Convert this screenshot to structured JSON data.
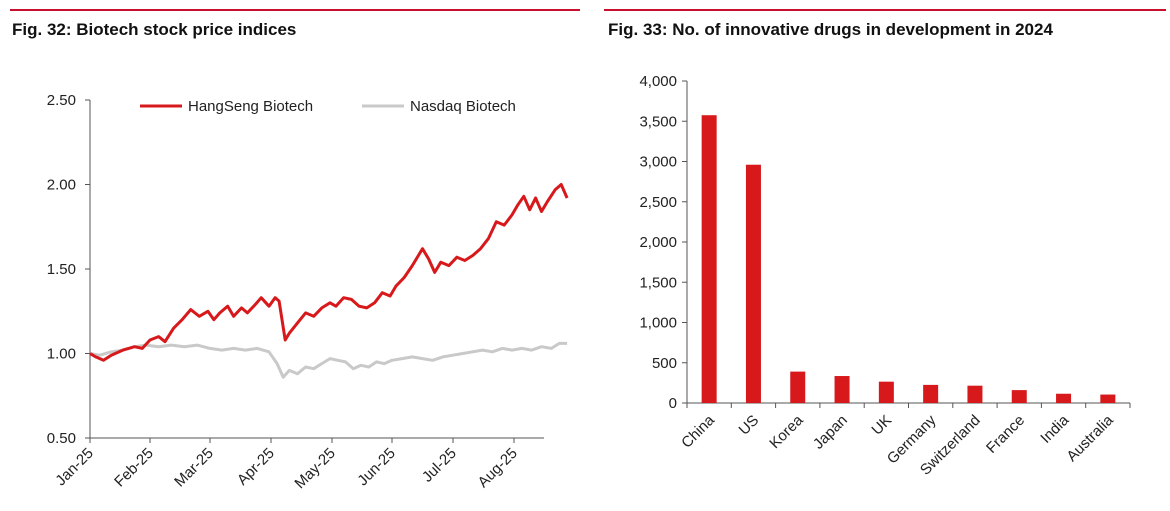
{
  "figures": [
    {
      "title": "Fig. 32: Biotech stock price indices"
    },
    {
      "title": "Fig. 33: No. of innovative drugs in development in 2024"
    }
  ],
  "colors": {
    "red": "#d7191c",
    "grey": "#c9c9c9",
    "rule": "#c8102e"
  },
  "chart_data": [
    {
      "type": "line",
      "title": "Fig. 32: Biotech stock price indices",
      "xlabel": "",
      "ylabel": "",
      "x_ticks": [
        "Jan-25",
        "Feb-25",
        "Mar-25",
        "Apr-25",
        "May-25",
        "Jun-25",
        "Jul-25",
        "Aug-25"
      ],
      "y_ticks": [
        "0.50",
        "1.00",
        "1.50",
        "2.00",
        "2.50"
      ],
      "ylim": [
        0.5,
        2.5
      ],
      "legend_position": "top",
      "series": [
        {
          "name": "HangSeng Biotech",
          "color": "#d7191c",
          "points": [
            [
              "2025-01-01",
              1.0
            ],
            [
              "2025-01-04",
              0.98
            ],
            [
              "2025-01-08",
              0.96
            ],
            [
              "2025-01-12",
              0.99
            ],
            [
              "2025-01-18",
              1.02
            ],
            [
              "2025-01-24",
              1.04
            ],
            [
              "2025-01-28",
              1.03
            ],
            [
              "2025-02-01",
              1.08
            ],
            [
              "2025-02-05",
              1.1
            ],
            [
              "2025-02-08",
              1.07
            ],
            [
              "2025-02-12",
              1.15
            ],
            [
              "2025-02-16",
              1.2
            ],
            [
              "2025-02-20",
              1.26
            ],
            [
              "2025-02-24",
              1.22
            ],
            [
              "2025-02-28",
              1.25
            ],
            [
              "2025-03-03",
              1.2
            ],
            [
              "2025-03-06",
              1.24
            ],
            [
              "2025-03-10",
              1.28
            ],
            [
              "2025-03-13",
              1.22
            ],
            [
              "2025-03-17",
              1.27
            ],
            [
              "2025-03-20",
              1.24
            ],
            [
              "2025-03-24",
              1.29
            ],
            [
              "2025-03-27",
              1.33
            ],
            [
              "2025-03-31",
              1.28
            ],
            [
              "2025-04-03",
              1.33
            ],
            [
              "2025-04-05",
              1.31
            ],
            [
              "2025-04-08",
              1.08
            ],
            [
              "2025-04-10",
              1.12
            ],
            [
              "2025-04-14",
              1.18
            ],
            [
              "2025-04-18",
              1.24
            ],
            [
              "2025-04-22",
              1.22
            ],
            [
              "2025-04-26",
              1.27
            ],
            [
              "2025-04-30",
              1.3
            ],
            [
              "2025-05-03",
              1.28
            ],
            [
              "2025-05-07",
              1.33
            ],
            [
              "2025-05-11",
              1.32
            ],
            [
              "2025-05-15",
              1.28
            ],
            [
              "2025-05-19",
              1.27
            ],
            [
              "2025-05-23",
              1.3
            ],
            [
              "2025-05-27",
              1.36
            ],
            [
              "2025-05-31",
              1.34
            ],
            [
              "2025-06-03",
              1.4
            ],
            [
              "2025-06-07",
              1.45
            ],
            [
              "2025-06-11",
              1.52
            ],
            [
              "2025-06-14",
              1.58
            ],
            [
              "2025-06-16",
              1.62
            ],
            [
              "2025-06-19",
              1.56
            ],
            [
              "2025-06-22",
              1.48
            ],
            [
              "2025-06-25",
              1.54
            ],
            [
              "2025-06-29",
              1.52
            ],
            [
              "2025-07-03",
              1.57
            ],
            [
              "2025-07-07",
              1.55
            ],
            [
              "2025-07-11",
              1.58
            ],
            [
              "2025-07-15",
              1.62
            ],
            [
              "2025-07-19",
              1.68
            ],
            [
              "2025-07-23",
              1.78
            ],
            [
              "2025-07-27",
              1.76
            ],
            [
              "2025-07-31",
              1.82
            ],
            [
              "2025-08-03",
              1.88
            ],
            [
              "2025-08-06",
              1.93
            ],
            [
              "2025-08-09",
              1.85
            ],
            [
              "2025-08-12",
              1.92
            ],
            [
              "2025-08-15",
              1.84
            ],
            [
              "2025-08-18",
              1.9
            ],
            [
              "2025-08-22",
              1.97
            ],
            [
              "2025-08-25",
              2.0
            ],
            [
              "2025-08-28",
              1.92
            ]
          ]
        },
        {
          "name": "Nasdaq Biotech",
          "color": "#c9c9c9",
          "points": [
            [
              "2025-01-01",
              1.0
            ],
            [
              "2025-01-06",
              0.99
            ],
            [
              "2025-01-12",
              1.01
            ],
            [
              "2025-01-18",
              1.02
            ],
            [
              "2025-01-24",
              1.04
            ],
            [
              "2025-01-30",
              1.05
            ],
            [
              "2025-02-05",
              1.04
            ],
            [
              "2025-02-11",
              1.05
            ],
            [
              "2025-02-17",
              1.04
            ],
            [
              "2025-02-23",
              1.05
            ],
            [
              "2025-03-01",
              1.03
            ],
            [
              "2025-03-07",
              1.02
            ],
            [
              "2025-03-13",
              1.03
            ],
            [
              "2025-03-19",
              1.02
            ],
            [
              "2025-03-25",
              1.03
            ],
            [
              "2025-03-31",
              1.01
            ],
            [
              "2025-04-04",
              0.94
            ],
            [
              "2025-04-07",
              0.86
            ],
            [
              "2025-04-10",
              0.9
            ],
            [
              "2025-04-14",
              0.88
            ],
            [
              "2025-04-18",
              0.92
            ],
            [
              "2025-04-22",
              0.91
            ],
            [
              "2025-04-26",
              0.94
            ],
            [
              "2025-04-30",
              0.97
            ],
            [
              "2025-05-04",
              0.96
            ],
            [
              "2025-05-08",
              0.95
            ],
            [
              "2025-05-12",
              0.91
            ],
            [
              "2025-05-16",
              0.93
            ],
            [
              "2025-05-20",
              0.92
            ],
            [
              "2025-05-24",
              0.95
            ],
            [
              "2025-05-28",
              0.94
            ],
            [
              "2025-06-01",
              0.96
            ],
            [
              "2025-06-06",
              0.97
            ],
            [
              "2025-06-11",
              0.98
            ],
            [
              "2025-06-16",
              0.97
            ],
            [
              "2025-06-21",
              0.96
            ],
            [
              "2025-06-26",
              0.98
            ],
            [
              "2025-07-01",
              0.99
            ],
            [
              "2025-07-06",
              1.0
            ],
            [
              "2025-07-11",
              1.01
            ],
            [
              "2025-07-16",
              1.02
            ],
            [
              "2025-07-21",
              1.01
            ],
            [
              "2025-07-26",
              1.03
            ],
            [
              "2025-07-31",
              1.02
            ],
            [
              "2025-08-05",
              1.03
            ],
            [
              "2025-08-10",
              1.02
            ],
            [
              "2025-08-15",
              1.04
            ],
            [
              "2025-08-20",
              1.03
            ],
            [
              "2025-08-24",
              1.06
            ],
            [
              "2025-08-28",
              1.06
            ]
          ]
        }
      ]
    },
    {
      "type": "bar",
      "title": "Fig. 33: No. of innovative drugs in development in 2024",
      "xlabel": "",
      "ylabel": "",
      "categories": [
        "China",
        "US",
        "Korea",
        "Japan",
        "UK",
        "Germany",
        "Switzerland",
        "France",
        "India",
        "Australia"
      ],
      "values": [
        3575,
        2960,
        390,
        335,
        265,
        225,
        215,
        160,
        115,
        105
      ],
      "y_ticks": [
        "0",
        "500",
        "1,000",
        "1,500",
        "2,000",
        "2,500",
        "3,000",
        "3,500",
        "4,000"
      ],
      "ylim": [
        0,
        4000
      ],
      "color": "#d7191c"
    }
  ]
}
